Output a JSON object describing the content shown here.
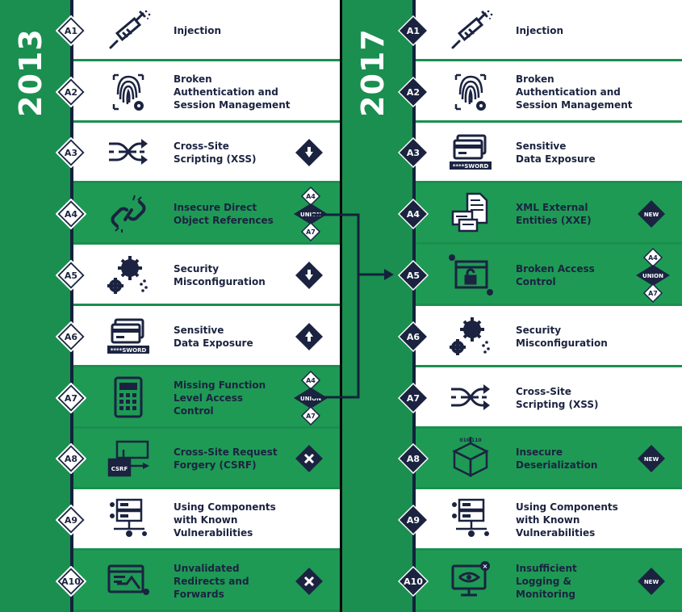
{
  "colors": {
    "green": "#1e9a55",
    "navy": "#1b2340",
    "white": "#ffffff"
  },
  "years": {
    "left": "2013",
    "right": "2017"
  },
  "list2013": [
    {
      "id": "A1",
      "label": "Injection",
      "icon": "syringe-icon",
      "bg": "white",
      "marker": ""
    },
    {
      "id": "A2",
      "label": "Broken\nAuthentication and\nSession Management",
      "icon": "fingerprint-icon",
      "bg": "white",
      "marker": ""
    },
    {
      "id": "A3",
      "label": "Cross-Site\nScripting (XSS)",
      "icon": "shuffle-icon",
      "bg": "white",
      "marker": "down"
    },
    {
      "id": "A4",
      "label": "Insecure Direct\nObject References",
      "icon": "broken-link-icon",
      "bg": "green",
      "marker": "union"
    },
    {
      "id": "A5",
      "label": "Security\nMisconfiguration",
      "icon": "gears-icon",
      "bg": "white",
      "marker": "down"
    },
    {
      "id": "A6",
      "label": "Sensitive\nData Exposure",
      "icon": "credit-card-icon",
      "bg": "white",
      "marker": "up"
    },
    {
      "id": "A7",
      "label": "Missing Function\nLevel Access\nControl",
      "icon": "calculator-icon",
      "bg": "green",
      "marker": "union"
    },
    {
      "id": "A8",
      "label": "Cross-Site Request\nForgery (CSRF)",
      "icon": "csrf-icon",
      "bg": "green",
      "marker": "x"
    },
    {
      "id": "A9",
      "label": "Using Components\nwith Known\nVulnerabilities",
      "icon": "server-icon",
      "bg": "white",
      "marker": ""
    },
    {
      "id": "A10",
      "label": "Unvalidated\nRedirects and\nForwards",
      "icon": "redirect-icon",
      "bg": "green",
      "marker": "x"
    }
  ],
  "list2017": [
    {
      "id": "A1",
      "label": "Injection",
      "icon": "syringe-icon",
      "bg": "white",
      "marker": ""
    },
    {
      "id": "A2",
      "label": "Broken\nAuthentication and\nSession Management",
      "icon": "fingerprint-icon",
      "bg": "white",
      "marker": ""
    },
    {
      "id": "A3",
      "label": "Sensitive\nData Exposure",
      "icon": "credit-card-icon",
      "bg": "white",
      "marker": ""
    },
    {
      "id": "A4",
      "label": "XML External\nEntities (XXE)",
      "icon": "xml-docs-icon",
      "bg": "green",
      "marker": "new"
    },
    {
      "id": "A5",
      "label": "Broken Access\nControl",
      "icon": "unlocked-window-icon",
      "bg": "green",
      "marker": "union"
    },
    {
      "id": "A6",
      "label": "Security\nMisconfiguration",
      "icon": "gears-icon",
      "bg": "white",
      "marker": ""
    },
    {
      "id": "A7",
      "label": "Cross-Site\nScripting (XSS)",
      "icon": "shuffle-icon",
      "bg": "white",
      "marker": ""
    },
    {
      "id": "A8",
      "label": "Insecure\nDeserialization",
      "icon": "cube-icon",
      "bg": "green",
      "marker": "new"
    },
    {
      "id": "A9",
      "label": "Using Components\nwith Known\nVulnerabilities",
      "icon": "server-icon",
      "bg": "white",
      "marker": ""
    },
    {
      "id": "A10",
      "label": "Insufficient\nLogging &\nMonitoring",
      "icon": "monitor-eye-icon",
      "bg": "green",
      "marker": "new"
    }
  ],
  "marker_text": {
    "union": "UNION",
    "union_top": "A4",
    "union_bottom": "A7",
    "new": "NEW",
    "card_text": "****SWORD",
    "csrf_text": "CSRF",
    "cube_top": "010 110"
  }
}
